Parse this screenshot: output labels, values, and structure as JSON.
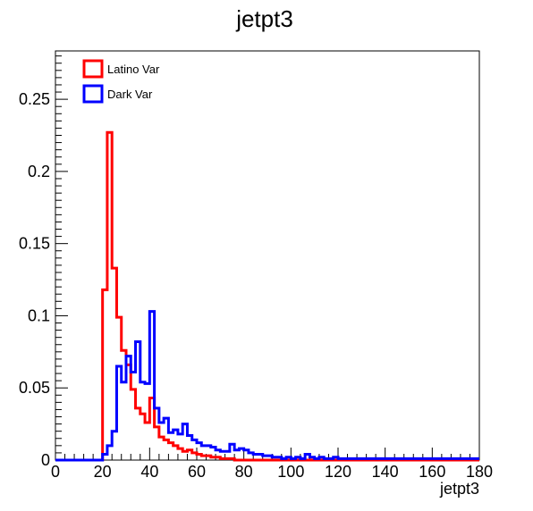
{
  "chart_data": {
    "type": "histogram",
    "title": "jetpt3",
    "xlabel": "jetpt3",
    "ylabel": "",
    "xlim": [
      0,
      180
    ],
    "ylim": [
      0,
      0.2835
    ],
    "grid": false,
    "legend_position": "top-left",
    "x_ticks": [
      "0",
      "20",
      "40",
      "60",
      "80",
      "100",
      "120",
      "140",
      "160",
      "180"
    ],
    "y_ticks": [
      "0",
      "0.05",
      "0.1",
      "0.15",
      "0.2",
      "0.25"
    ],
    "x_tick_values": [
      0,
      20,
      40,
      60,
      80,
      100,
      120,
      140,
      160,
      180
    ],
    "y_tick_values": [
      0,
      0.05,
      0.1,
      0.15,
      0.2,
      0.25
    ],
    "bin_width": 2,
    "series": [
      {
        "name": "Latino Var",
        "color": "#ff0000",
        "bins": [
          [
            20,
            0.118
          ],
          [
            22,
            0.227
          ],
          [
            24,
            0.133
          ],
          [
            26,
            0.099
          ],
          [
            28,
            0.076
          ],
          [
            30,
            0.066
          ],
          [
            32,
            0.049
          ],
          [
            34,
            0.036
          ],
          [
            36,
            0.032
          ],
          [
            38,
            0.026
          ],
          [
            40,
            0.043
          ],
          [
            42,
            0.023
          ],
          [
            44,
            0.016
          ],
          [
            46,
            0.014
          ],
          [
            48,
            0.012
          ],
          [
            50,
            0.01
          ],
          [
            52,
            0.008
          ],
          [
            54,
            0.006
          ],
          [
            56,
            0.007
          ],
          [
            58,
            0.005
          ],
          [
            60,
            0.004
          ],
          [
            62,
            0.003
          ],
          [
            64,
            0.003
          ],
          [
            66,
            0.002
          ],
          [
            68,
            0.002
          ],
          [
            70,
            0.001
          ],
          [
            72,
            0.001
          ],
          [
            74,
            0.001
          ]
        ]
      },
      {
        "name": "Dark Var",
        "color": "#0000ff",
        "bins": [
          [
            20,
            0.004
          ],
          [
            22,
            0.01
          ],
          [
            24,
            0.02
          ],
          [
            26,
            0.065
          ],
          [
            28,
            0.054
          ],
          [
            30,
            0.072
          ],
          [
            32,
            0.061
          ],
          [
            34,
            0.082
          ],
          [
            36,
            0.054
          ],
          [
            38,
            0.053
          ],
          [
            40,
            0.103
          ],
          [
            42,
            0.036
          ],
          [
            44,
            0.026
          ],
          [
            46,
            0.029
          ],
          [
            48,
            0.019
          ],
          [
            50,
            0.021
          ],
          [
            52,
            0.018
          ],
          [
            54,
            0.025
          ],
          [
            56,
            0.017
          ],
          [
            58,
            0.014
          ],
          [
            60,
            0.012
          ],
          [
            62,
            0.01
          ],
          [
            64,
            0.01
          ],
          [
            66,
            0.009
          ],
          [
            68,
            0.007
          ],
          [
            70,
            0.006
          ],
          [
            72,
            0.006
          ],
          [
            74,
            0.011
          ],
          [
            76,
            0.007
          ],
          [
            78,
            0.008
          ],
          [
            80,
            0.007
          ],
          [
            82,
            0.005
          ],
          [
            84,
            0.004
          ],
          [
            86,
            0.004
          ],
          [
            88,
            0.003
          ],
          [
            90,
            0.003
          ],
          [
            92,
            0.002
          ],
          [
            94,
            0.002
          ],
          [
            96,
            0.001
          ],
          [
            98,
            0.002
          ],
          [
            100,
            0.001
          ],
          [
            102,
            0.002
          ],
          [
            104,
            0.001
          ],
          [
            106,
            0.004
          ],
          [
            108,
            0.002
          ],
          [
            110,
            0.001
          ],
          [
            112,
            0.002
          ],
          [
            114,
            0.001
          ],
          [
            116,
            0.001
          ],
          [
            118,
            0.002
          ],
          [
            120,
            0.001
          ],
          [
            122,
            0.001
          ],
          [
            124,
            0.001
          ],
          [
            126,
            0.001
          ],
          [
            128,
            0.001
          ],
          [
            130,
            0.001
          ],
          [
            132,
            0.001
          ],
          [
            134,
            0.001
          ],
          [
            136,
            0.001
          ],
          [
            138,
            0.001
          ],
          [
            140,
            0.001
          ],
          [
            142,
            0.001
          ],
          [
            144,
            0.001
          ],
          [
            146,
            0.001
          ],
          [
            148,
            0.001
          ],
          [
            150,
            0.001
          ],
          [
            152,
            0.001
          ],
          [
            154,
            0.001
          ],
          [
            156,
            0.001
          ],
          [
            158,
            0.001
          ],
          [
            160,
            0.001
          ],
          [
            162,
            0.001
          ],
          [
            164,
            0.001
          ],
          [
            166,
            0.001
          ],
          [
            168,
            0.001
          ],
          [
            170,
            0.001
          ],
          [
            172,
            0.001
          ],
          [
            174,
            0.001
          ],
          [
            176,
            0.001
          ],
          [
            178,
            0.001
          ]
        ]
      }
    ]
  }
}
